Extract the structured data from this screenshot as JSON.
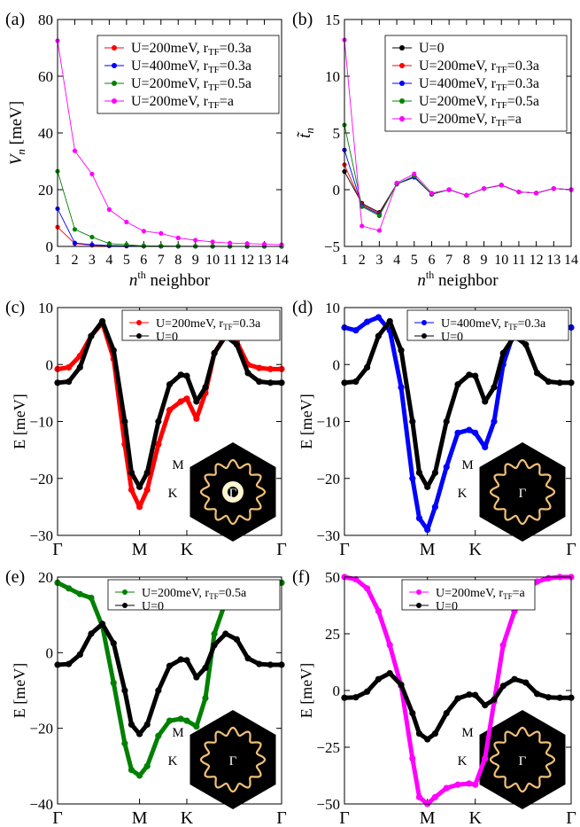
{
  "colors": {
    "black": "#000000",
    "red": "#ff0000",
    "blue": "#0000ff",
    "green": "#008000",
    "magenta": "#ff00ff",
    "inset_bg": "#000000",
    "inset_ring": "#f2c078"
  },
  "chart_data": [
    {
      "id": "a",
      "type": "line",
      "panel_label": "(a)",
      "ylabel_main": "V",
      "ylabel_sub": "n",
      "ylabel_rest": " [meV]",
      "xlabel_sup_base": "n",
      "xlabel_sup": "th",
      "xlabel_rest": " neighbor",
      "xlim": [
        1,
        14
      ],
      "ylim": [
        0,
        80
      ],
      "xticks": [
        1,
        2,
        3,
        4,
        5,
        6,
        7,
        8,
        9,
        10,
        11,
        12,
        13,
        14
      ],
      "yticks": [
        0,
        20,
        40,
        60,
        80
      ],
      "legend_position": "top-right",
      "series": [
        {
          "name": "U=200meV, r",
          "sub": "TF",
          "name_tail": "=0.3a",
          "color": "#ff0000",
          "x": [
            1,
            2,
            3,
            4,
            5,
            6,
            7,
            8,
            9,
            10,
            11,
            12,
            13,
            14
          ],
          "y": [
            6.8,
            1.0,
            0.4,
            0.2,
            0.1,
            0.05,
            0.05,
            0.02,
            0.02,
            0.01,
            0.01,
            0.01,
            0.01,
            0.0
          ]
        },
        {
          "name": "U=400meV, r",
          "sub": "TF",
          "name_tail": "=0.3a",
          "color": "#0000ff",
          "x": [
            1,
            2,
            3,
            4,
            5,
            6,
            7,
            8,
            9,
            10,
            11,
            12,
            13,
            14
          ],
          "y": [
            13.3,
            1.2,
            0.6,
            0.3,
            0.2,
            0.1,
            0.05,
            0.03,
            0.02,
            0.01,
            0.01,
            0.01,
            0.01,
            0.0
          ]
        },
        {
          "name": "U=200meV, r",
          "sub": "TF",
          "name_tail": "=0.5a",
          "color": "#008000",
          "x": [
            1,
            2,
            3,
            4,
            5,
            6,
            7,
            8,
            9,
            10,
            11,
            12,
            13,
            14
          ],
          "y": [
            26.5,
            6.0,
            3.3,
            1.0,
            0.6,
            0.2,
            0.15,
            0.1,
            0.05,
            0.05,
            0.03,
            0.02,
            0.02,
            0.01
          ]
        },
        {
          "name": "U=200meV, r",
          "sub": "TF",
          "name_tail": "=a",
          "color": "#ff00ff",
          "x": [
            1,
            2,
            3,
            4,
            5,
            6,
            7,
            8,
            9,
            10,
            11,
            12,
            13,
            14
          ],
          "y": [
            72.5,
            33.7,
            25.5,
            13.0,
            8.6,
            5.4,
            4.6,
            3.0,
            2.2,
            1.6,
            1.2,
            1.0,
            0.8,
            0.6
          ]
        }
      ]
    },
    {
      "id": "b",
      "type": "line",
      "panel_label": "(b)",
      "ylabel_main": "t̃",
      "ylabel_sub": "n",
      "ylabel_rest": "",
      "xlabel_sup_base": "n",
      "xlabel_sup": "th",
      "xlabel_rest": " neighbor",
      "xlim": [
        1,
        14
      ],
      "ylim": [
        -5,
        15
      ],
      "xticks": [
        1,
        2,
        3,
        4,
        5,
        6,
        7,
        8,
        9,
        10,
        11,
        12,
        13,
        14
      ],
      "yticks": [
        -5,
        0,
        5,
        10,
        15
      ],
      "legend_position": "top-right",
      "series": [
        {
          "name": "U=0",
          "sub": "",
          "name_tail": "",
          "color": "#000000",
          "x": [
            1,
            2,
            3,
            4,
            5,
            6,
            7,
            8,
            9,
            10,
            11,
            12,
            13,
            14
          ],
          "y": [
            1.6,
            -1.2,
            -2.0,
            0.5,
            1.1,
            -0.4,
            0.0,
            -0.5,
            0.1,
            0.4,
            -0.2,
            -0.3,
            0.1,
            0.0
          ]
        },
        {
          "name": "U=200meV, r",
          "sub": "TF",
          "name_tail": "=0.3a",
          "color": "#ff0000",
          "x": [
            1,
            2,
            3,
            4,
            5,
            6,
            7,
            8,
            9,
            10,
            11,
            12,
            13,
            14
          ],
          "y": [
            2.2,
            -1.3,
            -2.1,
            0.5,
            1.1,
            -0.4,
            0.0,
            -0.5,
            0.1,
            0.4,
            -0.2,
            -0.3,
            0.1,
            0.0
          ]
        },
        {
          "name": "U=400meV, r",
          "sub": "TF",
          "name_tail": "=0.3a",
          "color": "#0000ff",
          "x": [
            1,
            2,
            3,
            4,
            5,
            6,
            7,
            8,
            9,
            10,
            11,
            12,
            13,
            14
          ],
          "y": [
            3.5,
            -1.4,
            -2.2,
            0.5,
            1.1,
            -0.4,
            0.0,
            -0.5,
            0.1,
            0.4,
            -0.2,
            -0.3,
            0.1,
            0.0
          ]
        },
        {
          "name": "U=200meV, r",
          "sub": "TF",
          "name_tail": "=0.5a",
          "color": "#008000",
          "x": [
            1,
            2,
            3,
            4,
            5,
            6,
            7,
            8,
            9,
            10,
            11,
            12,
            13,
            14
          ],
          "y": [
            5.7,
            -1.5,
            -2.3,
            0.5,
            1.2,
            -0.4,
            0.0,
            -0.5,
            0.1,
            0.4,
            -0.2,
            -0.3,
            0.1,
            0.0
          ]
        },
        {
          "name": "U=200meV, r",
          "sub": "TF",
          "name_tail": "=a",
          "color": "#ff00ff",
          "x": [
            1,
            2,
            3,
            4,
            5,
            6,
            7,
            8,
            9,
            10,
            11,
            12,
            13,
            14
          ],
          "y": [
            13.2,
            -3.2,
            -3.6,
            0.6,
            1.4,
            -0.3,
            0.0,
            -0.5,
            0.1,
            0.4,
            -0.2,
            -0.3,
            0.1,
            0.0
          ]
        }
      ]
    },
    {
      "id": "c",
      "type": "scatter",
      "panel_label": "(c)",
      "ylabel": "E [meV]",
      "xlim": [
        0,
        1
      ],
      "ylim": [
        -30,
        10
      ],
      "yticks": [
        -30,
        -20,
        -10,
        0,
        10
      ],
      "xticks": [
        {
          "pos": 0,
          "label": "Γ"
        },
        {
          "pos": 0.366,
          "label": "M"
        },
        {
          "pos": 0.577,
          "label": "K"
        },
        {
          "pos": 1,
          "label": "Γ"
        }
      ],
      "legend_position": "top-right",
      "inset": {
        "labels": [
          "M",
          "K",
          "Γ"
        ],
        "bright_center": true
      },
      "series": [
        {
          "name": "U=200meV, r",
          "sub": "TF",
          "name_tail": "=0.3a",
          "color": "#ff0000",
          "x": [
            0,
            0.05,
            0.1,
            0.15,
            0.2,
            0.25,
            0.3,
            0.33,
            0.366,
            0.4,
            0.45,
            0.5,
            0.55,
            0.577,
            0.62,
            0.66,
            0.7,
            0.75,
            0.8,
            0.85,
            0.9,
            0.95,
            1.0
          ],
          "y": [
            -0.8,
            -0.5,
            1.5,
            5.0,
            7.3,
            1.0,
            -14.0,
            -22.0,
            -25.0,
            -22.0,
            -14.0,
            -8.0,
            -6.5,
            -6.0,
            -9.5,
            -5.0,
            2.0,
            5.2,
            4.0,
            0.0,
            -0.6,
            -0.8,
            -0.8
          ]
        },
        {
          "name": "U=0",
          "sub": "",
          "name_tail": "",
          "color": "#000000",
          "x": [
            0,
            0.05,
            0.1,
            0.15,
            0.2,
            0.25,
            0.3,
            0.33,
            0.366,
            0.4,
            0.45,
            0.5,
            0.55,
            0.577,
            0.62,
            0.66,
            0.7,
            0.75,
            0.8,
            0.85,
            0.9,
            0.95,
            1.0
          ],
          "y": [
            -3.2,
            -3.0,
            -0.5,
            5.0,
            7.6,
            2.5,
            -10.0,
            -19.0,
            -21.5,
            -19.0,
            -10.0,
            -3.5,
            -1.8,
            -2.0,
            -6.5,
            -4.0,
            2.0,
            5.0,
            3.5,
            -1.5,
            -3.0,
            -3.2,
            -3.2
          ]
        }
      ]
    },
    {
      "id": "d",
      "type": "scatter",
      "panel_label": "(d)",
      "ylabel": "E [meV]",
      "xlim": [
        0,
        1
      ],
      "ylim": [
        -30,
        10
      ],
      "yticks": [
        -30,
        -20,
        -10,
        0,
        10
      ],
      "xticks": [
        {
          "pos": 0,
          "label": "Γ"
        },
        {
          "pos": 0.366,
          "label": "M"
        },
        {
          "pos": 0.577,
          "label": "K"
        },
        {
          "pos": 1,
          "label": "Γ"
        }
      ],
      "legend_position": "top-right",
      "inset": {
        "labels": [
          "M",
          "K",
          "Γ"
        ],
        "bright_center": false
      },
      "series": [
        {
          "name": "U=400meV, r",
          "sub": "TF",
          "name_tail": "=0.3a",
          "color": "#0000ff",
          "x": [
            0,
            0.05,
            0.1,
            0.15,
            0.2,
            0.25,
            0.3,
            0.33,
            0.366,
            0.4,
            0.45,
            0.5,
            0.55,
            0.577,
            0.62,
            0.66,
            0.7,
            0.75,
            0.8,
            0.85,
            0.9,
            0.95,
            1.0
          ],
          "y": [
            6.5,
            6.0,
            7.5,
            8.3,
            6.0,
            -4.0,
            -20.0,
            -27.0,
            -29.0,
            -25.0,
            -18.0,
            -12.0,
            -11.5,
            -12.0,
            -14.5,
            -10.0,
            0.0,
            6.0,
            6.5,
            6.0,
            6.2,
            6.5,
            6.5
          ]
        },
        {
          "name": "U=0",
          "sub": "",
          "name_tail": "",
          "color": "#000000",
          "x": [
            0,
            0.05,
            0.1,
            0.15,
            0.2,
            0.25,
            0.3,
            0.33,
            0.366,
            0.4,
            0.45,
            0.5,
            0.55,
            0.577,
            0.62,
            0.66,
            0.7,
            0.75,
            0.8,
            0.85,
            0.9,
            0.95,
            1.0
          ],
          "y": [
            -3.2,
            -3.0,
            -0.5,
            5.0,
            7.6,
            2.5,
            -10.0,
            -19.0,
            -21.5,
            -19.0,
            -10.0,
            -3.5,
            -1.8,
            -2.0,
            -6.5,
            -4.0,
            2.0,
            5.0,
            3.5,
            -1.5,
            -3.0,
            -3.2,
            -3.2
          ]
        }
      ]
    },
    {
      "id": "e",
      "type": "scatter",
      "panel_label": "(e)",
      "ylabel": "E [meV]",
      "xlim": [
        0,
        1
      ],
      "ylim": [
        -40,
        20
      ],
      "yticks": [
        -40,
        -20,
        0,
        20
      ],
      "xticks": [
        {
          "pos": 0,
          "label": "Γ"
        },
        {
          "pos": 0.366,
          "label": "M"
        },
        {
          "pos": 0.577,
          "label": "K"
        },
        {
          "pos": 1,
          "label": "Γ"
        }
      ],
      "legend_position": "top-right",
      "inset": {
        "labels": [
          "M",
          "K",
          "Γ"
        ],
        "bright_center": false
      },
      "series": [
        {
          "name": "U=200meV, r",
          "sub": "TF",
          "name_tail": "=0.5a",
          "color": "#008000",
          "x": [
            0,
            0.05,
            0.1,
            0.15,
            0.2,
            0.25,
            0.3,
            0.33,
            0.366,
            0.4,
            0.45,
            0.5,
            0.55,
            0.577,
            0.62,
            0.66,
            0.7,
            0.75,
            0.8,
            0.85,
            0.9,
            0.95,
            1.0
          ],
          "y": [
            18.5,
            17.0,
            15.5,
            14.5,
            7.0,
            -8.0,
            -24.0,
            -31.0,
            -32.5,
            -30.0,
            -22.0,
            -18.0,
            -17.5,
            -18.0,
            -19.5,
            -12.0,
            5.0,
            13.5,
            16.0,
            17.0,
            17.5,
            18.0,
            18.5
          ]
        },
        {
          "name": "U=0",
          "sub": "",
          "name_tail": "",
          "color": "#000000",
          "x": [
            0,
            0.05,
            0.1,
            0.15,
            0.2,
            0.25,
            0.3,
            0.33,
            0.366,
            0.4,
            0.45,
            0.5,
            0.55,
            0.577,
            0.62,
            0.66,
            0.7,
            0.75,
            0.8,
            0.85,
            0.9,
            0.95,
            1.0
          ],
          "y": [
            -3.2,
            -3.0,
            -0.5,
            5.0,
            7.6,
            2.5,
            -10.0,
            -19.0,
            -21.5,
            -19.0,
            -10.0,
            -3.5,
            -1.8,
            -2.0,
            -6.5,
            -4.0,
            2.0,
            5.0,
            3.5,
            -1.5,
            -3.0,
            -3.2,
            -3.2
          ]
        }
      ]
    },
    {
      "id": "f",
      "type": "scatter",
      "panel_label": "(f)",
      "ylabel": "E [meV]",
      "xlim": [
        0,
        1
      ],
      "ylim": [
        -50,
        50
      ],
      "yticks": [
        -50,
        -25,
        0,
        25,
        50
      ],
      "xticks": [
        {
          "pos": 0,
          "label": "Γ"
        },
        {
          "pos": 0.366,
          "label": "M"
        },
        {
          "pos": 0.577,
          "label": "K"
        },
        {
          "pos": 1,
          "label": "Γ"
        }
      ],
      "legend_position": "top-right",
      "inset": {
        "labels": [
          "M",
          "K",
          "Γ"
        ],
        "bright_center": false
      },
      "series": [
        {
          "name": "U=200meV, r",
          "sub": "TF",
          "name_tail": "=a",
          "color": "#ff00ff",
          "x": [
            0,
            0.05,
            0.1,
            0.15,
            0.2,
            0.25,
            0.3,
            0.33,
            0.366,
            0.4,
            0.45,
            0.5,
            0.55,
            0.577,
            0.62,
            0.66,
            0.7,
            0.75,
            0.8,
            0.85,
            0.9,
            0.95,
            1.0
          ],
          "y": [
            50.0,
            49.0,
            45.0,
            35.0,
            20.0,
            2.0,
            -30.0,
            -47.0,
            -50.0,
            -47.0,
            -43.0,
            -41.5,
            -41.0,
            -41.5,
            -30.0,
            -5.0,
            20.0,
            35.0,
            44.0,
            48.0,
            49.5,
            50.0,
            50.0
          ]
        },
        {
          "name": "U=0",
          "sub": "",
          "name_tail": "",
          "color": "#000000",
          "x": [
            0,
            0.05,
            0.1,
            0.15,
            0.2,
            0.25,
            0.3,
            0.33,
            0.366,
            0.4,
            0.45,
            0.5,
            0.55,
            0.577,
            0.62,
            0.66,
            0.7,
            0.75,
            0.8,
            0.85,
            0.9,
            0.95,
            1.0
          ],
          "y": [
            -3.2,
            -3.0,
            -0.5,
            5.0,
            7.6,
            2.5,
            -10.0,
            -19.0,
            -21.5,
            -19.0,
            -10.0,
            -3.5,
            -1.8,
            -2.0,
            -6.5,
            -4.0,
            2.0,
            5.0,
            3.5,
            -1.5,
            -3.0,
            -3.2,
            -3.2
          ]
        }
      ]
    }
  ]
}
